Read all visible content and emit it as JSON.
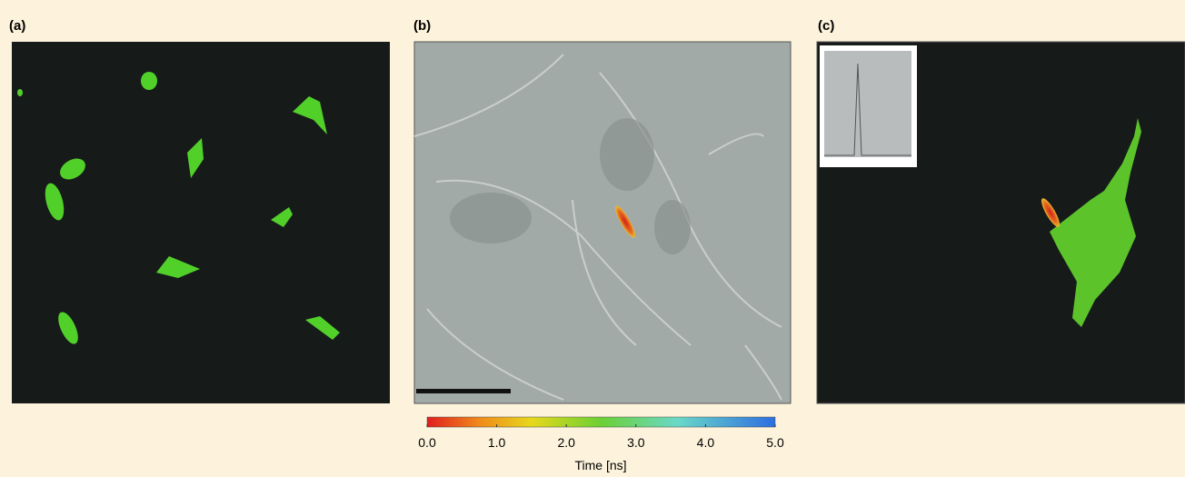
{
  "panels": [
    {
      "label": "(a)"
    },
    {
      "label": "(b)"
    },
    {
      "label": "(c)"
    }
  ],
  "colorbar": {
    "label": "Time [ns]",
    "range": [
      0,
      5
    ],
    "ticks": [
      {
        "value": 0,
        "label": "0.0"
      },
      {
        "value": 1,
        "label": "1.0"
      },
      {
        "value": 2,
        "label": "2.0"
      },
      {
        "value": 3,
        "label": "3.0"
      },
      {
        "value": 4,
        "label": "4.0"
      },
      {
        "value": 5,
        "label": "5.0"
      }
    ]
  }
}
